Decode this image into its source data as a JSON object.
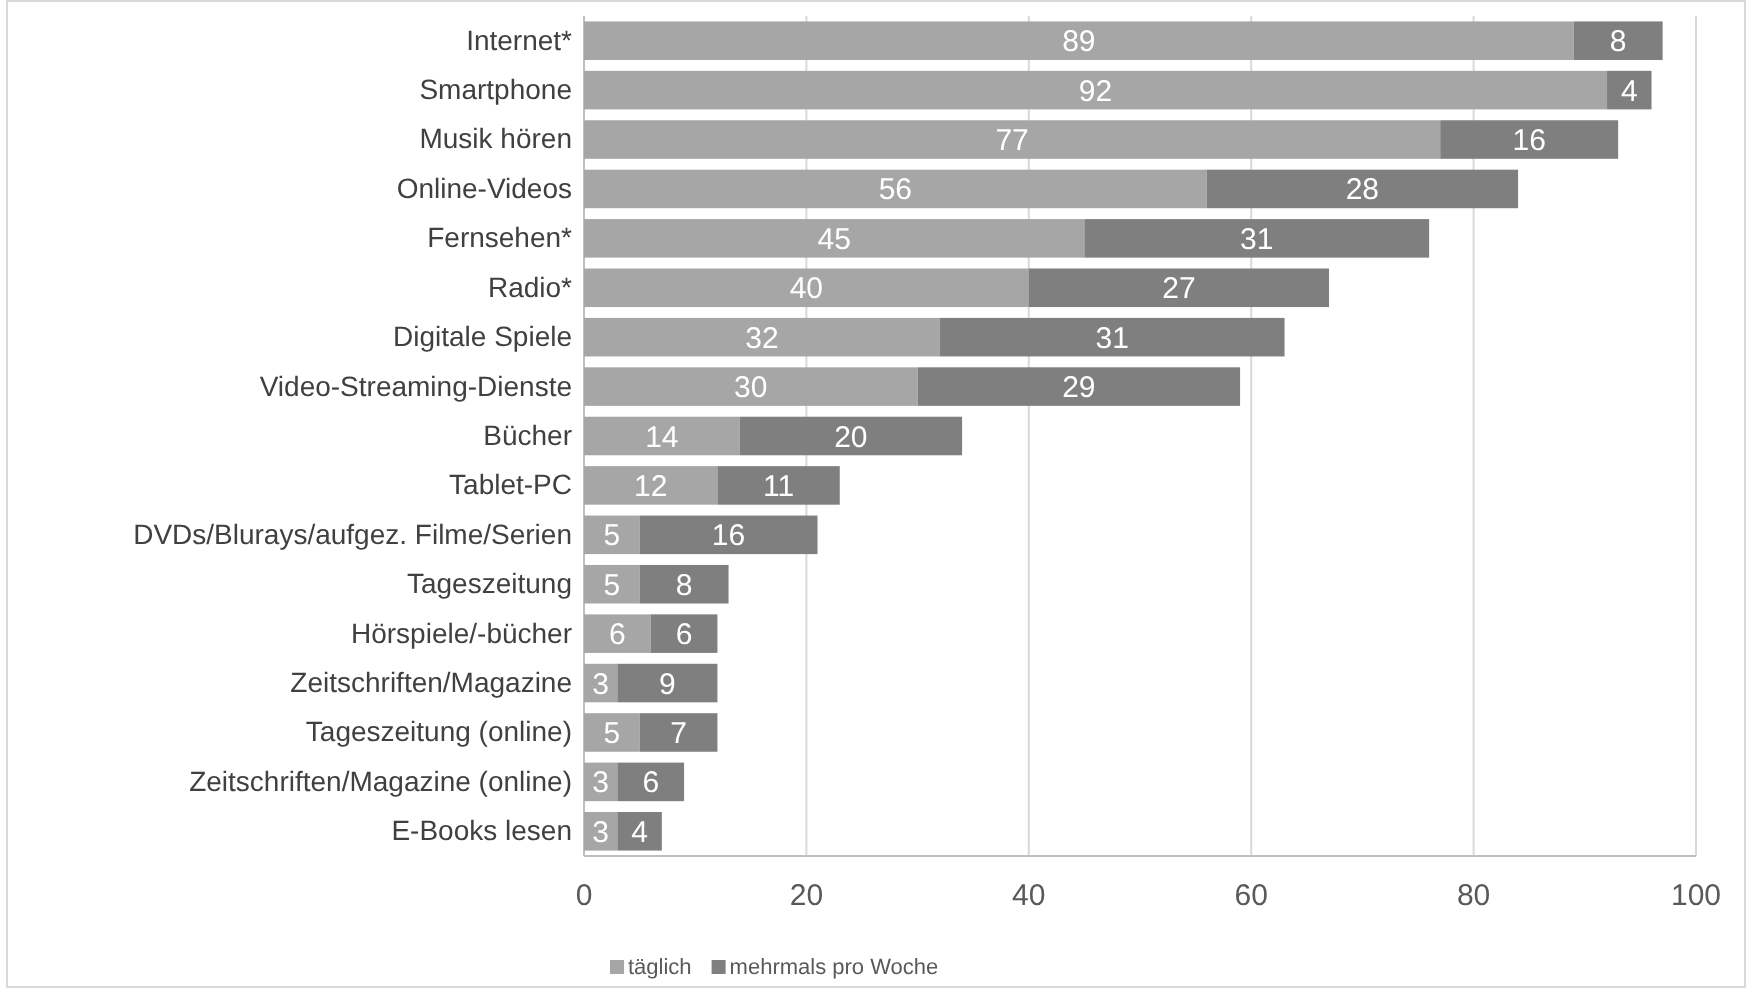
{
  "chart_data": {
    "type": "bar",
    "orientation": "horizontal",
    "stacked": true,
    "categories": [
      "Internet*",
      "Smartphone",
      "Musik hören",
      "Online-Videos",
      "Fernsehen*",
      "Radio*",
      "Digitale Spiele",
      "Video-Streaming-Dienste",
      "Bücher",
      "Tablet-PC",
      "DVDs/Blurays/aufgez. Filme/Serien",
      "Tageszeitung",
      "Hörspiele/-bücher",
      "Zeitschriften/Magazine",
      "Tageszeitung (online)",
      "Zeitschriften/Magazine (online)",
      "E-Books lesen"
    ],
    "series": [
      {
        "name": "täglich",
        "color": "#a6a6a6",
        "values": [
          89,
          92,
          77,
          56,
          45,
          40,
          32,
          30,
          14,
          12,
          5,
          5,
          6,
          3,
          5,
          3,
          3
        ]
      },
      {
        "name": "mehrmals pro Woche",
        "color": "#7f7f7f",
        "values": [
          8,
          4,
          16,
          28,
          31,
          27,
          31,
          29,
          20,
          11,
          16,
          8,
          6,
          9,
          7,
          6,
          4
        ]
      }
    ],
    "xlim": [
      0,
      100
    ],
    "xticks": [
      0,
      20,
      40,
      60,
      80,
      100
    ],
    "grid": "x",
    "legend": "bottom",
    "data_labels": true
  }
}
